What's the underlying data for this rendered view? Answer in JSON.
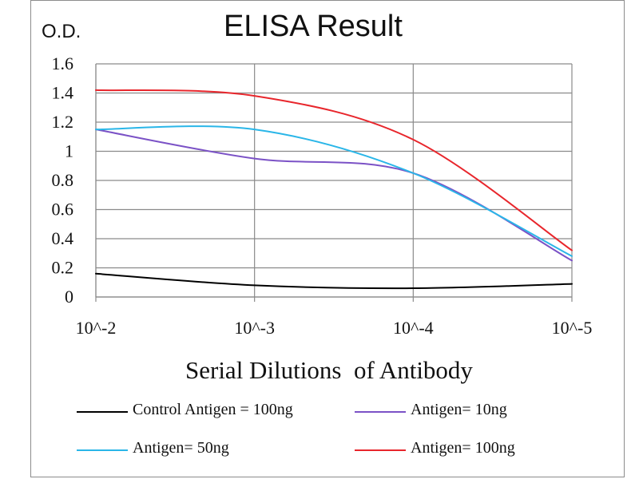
{
  "header": {
    "od_label": "O.D.",
    "title": "ELISA Result"
  },
  "chart_data": {
    "type": "line",
    "title": "ELISA Result",
    "ylabel": "O.D.",
    "xlabel": "Serial Dilutions  of Antibody",
    "x_ticks": [
      "10^-2",
      "10^-3",
      "10^-4",
      "10^-5"
    ],
    "y_ticks": [
      "0",
      "0.2",
      "0.4",
      "0.6",
      "0.8",
      "1",
      "1.2",
      "1.4",
      "1.6"
    ],
    "ylim": [
      0,
      1.6
    ],
    "grid": true,
    "legend_position": "bottom",
    "series": [
      {
        "name": "Control Antigen = 100ng",
        "color": "#000000",
        "x": [
          0.01,
          0.001,
          0.0001,
          1e-05
        ],
        "values": [
          0.16,
          0.08,
          0.06,
          0.09
        ]
      },
      {
        "name": "Antigen= 10ng",
        "color": "#7b52c6",
        "x": [
          0.01,
          0.001,
          0.0001,
          1e-05
        ],
        "values": [
          1.15,
          0.95,
          0.85,
          0.25
        ]
      },
      {
        "name": "Antigen= 50ng",
        "color": "#2ab6e8",
        "x": [
          0.01,
          0.001,
          0.0001,
          1e-05
        ],
        "values": [
          1.15,
          1.15,
          0.85,
          0.28
        ]
      },
      {
        "name": "Antigen= 100ng",
        "color": "#e8262c",
        "x": [
          0.01,
          0.001,
          0.0001,
          1e-05
        ],
        "values": [
          1.42,
          1.38,
          1.08,
          0.32
        ]
      }
    ]
  }
}
